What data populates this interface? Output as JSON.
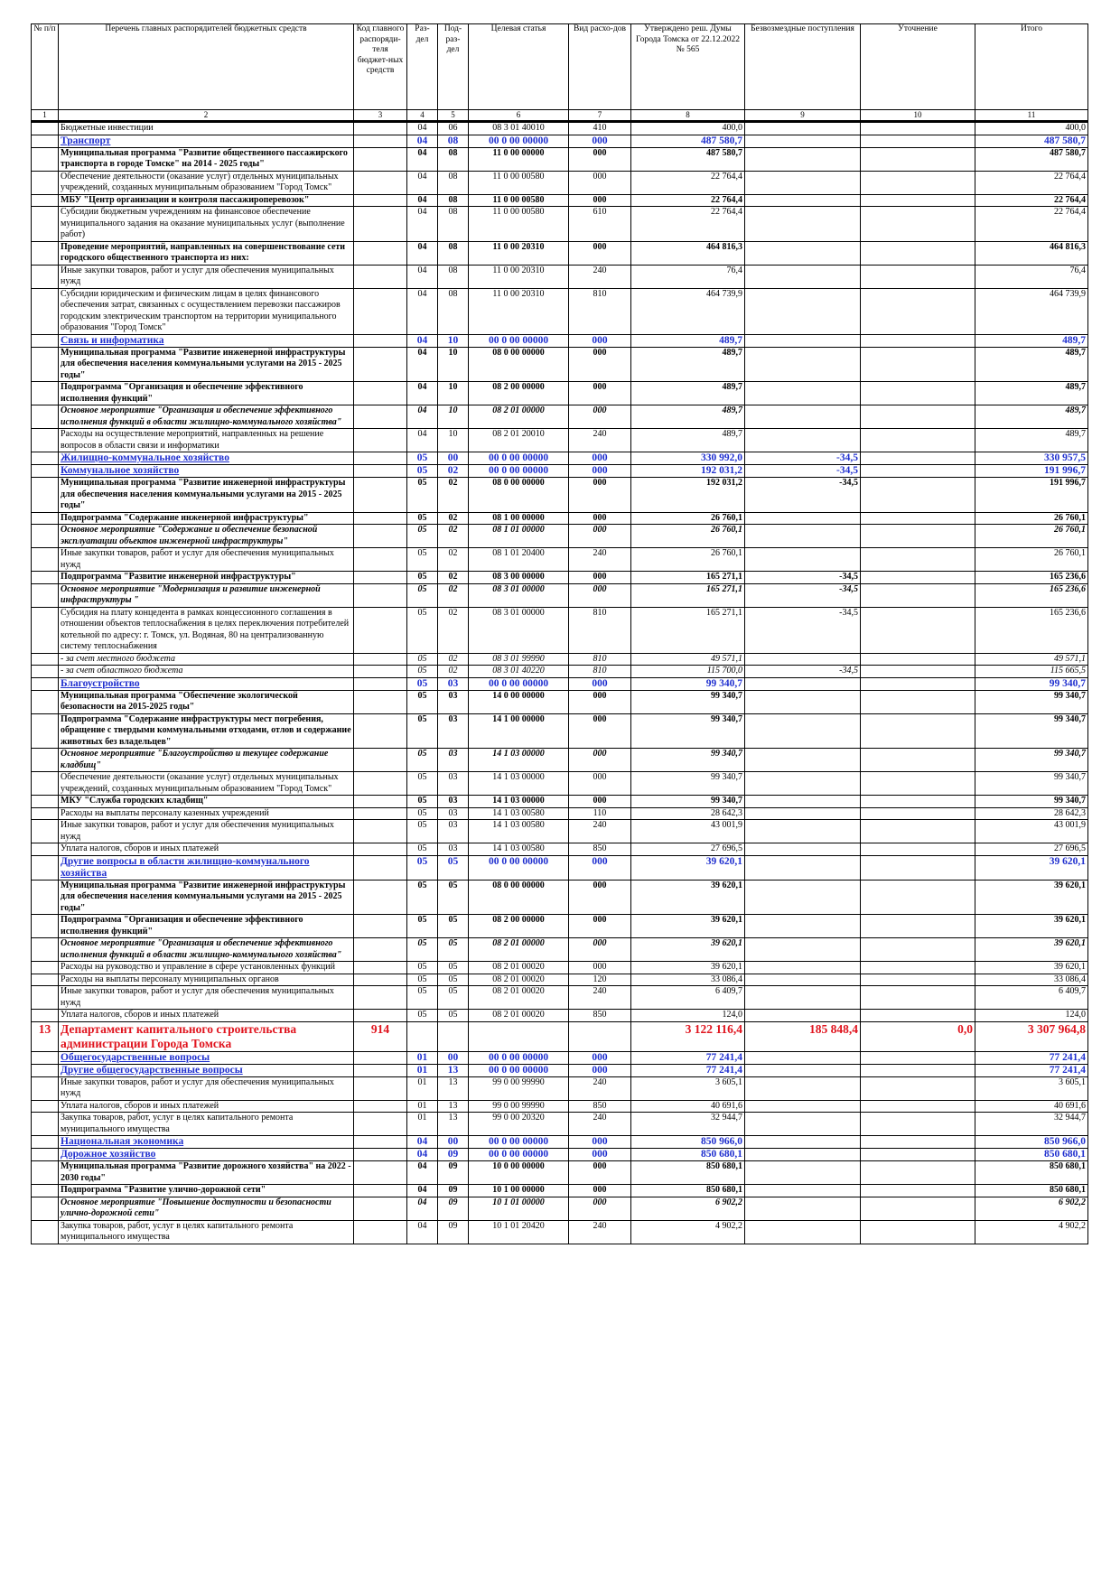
{
  "table": {
    "header": [
      "№ п/п",
      "Перечень главных распорядителей бюджетных средств",
      "Код главного распоряди-теля бюджет-ных средств",
      "Раз-дел",
      "Под-раз-дел",
      "Целевая статья",
      "Вид расхо-дов",
      "Утверждено реш. Думы Города Томска от 22.12.2022 № 565",
      "Безвозмездные поступления",
      "Уточнение",
      "Итого"
    ],
    "column_numbers": [
      "1",
      "2",
      "3",
      "4",
      "5",
      "6",
      "7",
      "8",
      "9",
      "10",
      "11"
    ],
    "rows": [
      {
        "style": "n",
        "cells": [
          null,
          "Бюджетные инвестиции",
          null,
          "04",
          "06",
          "08 3 01 40010",
          "410",
          "400,0",
          null,
          null,
          "400,0"
        ]
      },
      {
        "style": "blue",
        "cells": [
          null,
          "Транспорт",
          null,
          "04",
          "08",
          "00 0 00 00000",
          "000",
          "487 580,7",
          null,
          null,
          "487 580,7"
        ]
      },
      {
        "style": "b",
        "cells": [
          null,
          "Муниципальная программа \"Развитие общественного пассажирского транспорта в городе Томске\" на 2014 - 2025 годы\"",
          null,
          "04",
          "08",
          "11 0 00 00000",
          "000",
          "487 580,7",
          null,
          null,
          "487 580,7"
        ]
      },
      {
        "style": "n",
        "cells": [
          null,
          "Обеспечение деятельности (оказание услуг) отдельных муниципальных учреждений, созданных муниципальным образованием \"Город Томск\"",
          null,
          "04",
          "08",
          "11 0 00 00580",
          "000",
          "22 764,4",
          null,
          null,
          "22 764,4"
        ]
      },
      {
        "style": "b",
        "cells": [
          null,
          "МБУ \"Центр организации и контроля пассажироперевозок\"",
          null,
          "04",
          "08",
          "11 0 00 00580",
          "000",
          "22 764,4",
          null,
          null,
          "22 764,4"
        ]
      },
      {
        "style": "n",
        "cells": [
          null,
          "Субсидии бюджетным учреждениям на финансовое обеспечение муниципального задания на оказание муниципальных услуг (выполнение работ)",
          null,
          "04",
          "08",
          "11 0 00 00580",
          "610",
          "22 764,4",
          null,
          null,
          "22 764,4"
        ]
      },
      {
        "style": "b",
        "cells": [
          null,
          "Проведение мероприятий, направленных на совершенствование сети городского общественного транспорта из них:",
          null,
          "04",
          "08",
          "11 0 00 20310",
          "000",
          "464 816,3",
          null,
          null,
          "464 816,3"
        ]
      },
      {
        "style": "n",
        "cells": [
          null,
          "Иные закупки товаров, работ и услуг для обеспечения муниципальных нужд",
          null,
          "04",
          "08",
          "11 0 00 20310",
          "240",
          "76,4",
          null,
          null,
          "76,4"
        ]
      },
      {
        "style": "n",
        "cells": [
          null,
          "Субсидии юридическим и физическим лицам в целях финансового обеспечения затрат, связанных с осуществлением перевозки пассажиров городским электрическим транспортом на территории муниципального образования \"Город Томск\"",
          null,
          "04",
          "08",
          "11 0 00 20310",
          "810",
          "464 739,9",
          null,
          null,
          "464 739,9"
        ]
      },
      {
        "style": "blue",
        "cells": [
          null,
          "Связь и информатика",
          null,
          "04",
          "10",
          "00 0 00 00000",
          "000",
          "489,7",
          null,
          null,
          "489,7"
        ]
      },
      {
        "style": "b",
        "cells": [
          null,
          "Муниципальная программа \"Развитие инженерной инфраструктуры для обеспечения населения коммунальными услугами на 2015 - 2025 годы\"",
          null,
          "04",
          "10",
          "08 0 00 00000",
          "000",
          "489,7",
          null,
          null,
          "489,7"
        ]
      },
      {
        "style": "b",
        "cells": [
          null,
          "Подпрограмма \"Организация и обеспечение эффективного исполнения функций\"",
          null,
          "04",
          "10",
          "08 2 00 00000",
          "000",
          "489,7",
          null,
          null,
          "489,7"
        ]
      },
      {
        "style": "bi",
        "cells": [
          null,
          "Основное мероприятие \"Организация и обеспечение эффективного исполнения функций в области жилищно-коммунального хозяйства\"",
          null,
          "04",
          "10",
          "08 2 01 00000",
          "000",
          "489,7",
          null,
          null,
          "489,7"
        ]
      },
      {
        "style": "n",
        "cells": [
          null,
          "Расходы на осуществление мероприятий, направленных на решение вопросов в области связи и информатики",
          null,
          "04",
          "10",
          "08 2 01 20010",
          "240",
          "489,7",
          null,
          null,
          "489,7"
        ]
      },
      {
        "style": "blue",
        "cells": [
          null,
          "Жилищно-коммунальное хозяйство",
          null,
          "05",
          "00",
          "00 0 00 00000",
          "000",
          "330 992,0",
          "-34,5",
          null,
          "330 957,5"
        ]
      },
      {
        "style": "blue",
        "cells": [
          null,
          "Коммунальное хозяйство",
          null,
          "05",
          "02",
          "00 0 00 00000",
          "000",
          "192 031,2",
          "-34,5",
          null,
          "191 996,7"
        ]
      },
      {
        "style": "b",
        "cells": [
          null,
          "Муниципальная программа \"Развитие инженерной инфраструктуры для обеспечения населения коммунальными услугами на 2015 - 2025 годы\"",
          null,
          "05",
          "02",
          "08 0 00 00000",
          "000",
          "192 031,2",
          "-34,5",
          null,
          "191 996,7"
        ]
      },
      {
        "style": "b",
        "cells": [
          null,
          "Подпрограмма \"Содержание инженерной инфраструктуры\"",
          null,
          "05",
          "02",
          "08 1 00 00000",
          "000",
          "26 760,1",
          null,
          null,
          "26 760,1"
        ]
      },
      {
        "style": "bi",
        "cells": [
          null,
          "Основное мероприятие \"Содержание и обеспечение безопасной эксплуатации объектов инженерной инфраструктуры\"",
          null,
          "05",
          "02",
          "08 1 01 00000",
          "000",
          "26 760,1",
          null,
          null,
          "26 760,1"
        ]
      },
      {
        "style": "n",
        "cells": [
          null,
          "Иные закупки товаров, работ и услуг для обеспечения муниципальных нужд",
          null,
          "05",
          "02",
          "08 1 01 20400",
          "240",
          "26 760,1",
          null,
          null,
          "26 760,1"
        ]
      },
      {
        "style": "b",
        "cells": [
          null,
          "Подпрограмма \"Развитие инженерной инфраструктуры\"",
          null,
          "05",
          "02",
          "08 3 00 00000",
          "000",
          "165 271,1",
          "-34,5",
          null,
          "165 236,6"
        ]
      },
      {
        "style": "bi",
        "cells": [
          null,
          "Основное мероприятие \"Модернизация и развитие инженерной инфраструктуры \"",
          null,
          "05",
          "02",
          "08 3 01 00000",
          "000",
          "165 271,1",
          "-34,5",
          null,
          "165 236,6"
        ]
      },
      {
        "style": "n",
        "cells": [
          null,
          "Субсидия на плату концедента в рамках концессионного соглашения в отношении объектов теплоснабжения в целях переключения потребителей котельной по адресу: г. Томск, ул. Водяная, 80 на централизованную систему теплоснабжения",
          null,
          "05",
          "02",
          "08 3 01 00000",
          "810",
          "165 271,1",
          "-34,5",
          null,
          "165 236,6"
        ]
      },
      {
        "style": "ni",
        "cells": [
          null,
          "- за счет местного бюджета",
          null,
          "05",
          "02",
          "08 3 01 99990",
          "810",
          "49 571,1",
          null,
          null,
          "49 571,1"
        ]
      },
      {
        "style": "ni",
        "cells": [
          null,
          "- за счет областного бюджета",
          null,
          "05",
          "02",
          "08 3 01 40220",
          "810",
          "115 700,0",
          "-34,5",
          null,
          "115 665,5"
        ]
      },
      {
        "style": "blue",
        "cells": [
          null,
          "Благоустройство",
          null,
          "05",
          "03",
          "00 0 00 00000",
          "000",
          "99 340,7",
          null,
          null,
          "99 340,7"
        ]
      },
      {
        "style": "b",
        "cells": [
          null,
          "Муниципальная программа \"Обеспечение экологической безопасности на 2015-2025 годы\"",
          null,
          "05",
          "03",
          "14 0 00 00000",
          "000",
          "99 340,7",
          null,
          null,
          "99 340,7"
        ]
      },
      {
        "style": "b",
        "cells": [
          null,
          "Подпрограмма \"Содержание инфраструктуры мест погребения, обращение с твердыми коммунальными отходами, отлов и содержание животных без владельцев\"",
          null,
          "05",
          "03",
          "14 1 00 00000",
          "000",
          "99 340,7",
          null,
          null,
          "99 340,7"
        ]
      },
      {
        "style": "bi",
        "cells": [
          null,
          "Основное мероприятие \"Благоустройство и текущее содержание кладбищ\"",
          null,
          "05",
          "03",
          "14 1 03 00000",
          "000",
          "99 340,7",
          null,
          null,
          "99 340,7"
        ]
      },
      {
        "style": "n",
        "cells": [
          null,
          "Обеспечение деятельности (оказание услуг) отдельных муниципальных учреждений, созданных муниципальным образованием \"Город Томск\"",
          null,
          "05",
          "03",
          "14 1 03 00000",
          "000",
          "99 340,7",
          null,
          null,
          "99 340,7"
        ]
      },
      {
        "style": "b",
        "cells": [
          null,
          "МКУ \"Служба городских кладбищ\"",
          null,
          "05",
          "03",
          "14 1 03 00000",
          "000",
          "99 340,7",
          null,
          null,
          "99 340,7"
        ]
      },
      {
        "style": "n",
        "cells": [
          null,
          "Расходы на выплаты персоналу казенных учреждений",
          null,
          "05",
          "03",
          "14 1 03 00580",
          "110",
          "28 642,3",
          null,
          null,
          "28 642,3"
        ]
      },
      {
        "style": "n",
        "cells": [
          null,
          "Иные закупки товаров, работ и услуг для обеспечения муниципальных нужд",
          null,
          "05",
          "03",
          "14 1 03 00580",
          "240",
          "43 001,9",
          null,
          null,
          "43 001,9"
        ]
      },
      {
        "style": "n",
        "cells": [
          null,
          "Уплата налогов, сборов и иных платежей",
          null,
          "05",
          "03",
          "14 1 03 00580",
          "850",
          "27 696,5",
          null,
          null,
          "27 696,5"
        ]
      },
      {
        "style": "blue",
        "cells": [
          null,
          "Другие вопросы в области жилищно-коммунального хозяйства",
          null,
          "05",
          "05",
          "00 0 00 00000",
          "000",
          "39 620,1",
          null,
          null,
          "39 620,1"
        ]
      },
      {
        "style": "b",
        "cells": [
          null,
          "Муниципальная программа \"Развитие инженерной инфраструктуры для обеспечения населения коммунальными услугами на 2015 - 2025 годы\"",
          null,
          "05",
          "05",
          "08 0 00 00000",
          "000",
          "39 620,1",
          null,
          null,
          "39 620,1"
        ]
      },
      {
        "style": "b",
        "cells": [
          null,
          "Подпрограмма \"Организация и обеспечение эффективного исполнения функций\"",
          null,
          "05",
          "05",
          "08 2 00 00000",
          "000",
          "39 620,1",
          null,
          null,
          "39 620,1"
        ]
      },
      {
        "style": "bi",
        "cells": [
          null,
          "Основное мероприятие \"Организация и обеспечение эффективного исполнения функций в области жилищно-коммунального хозяйства\"",
          null,
          "05",
          "05",
          "08 2 01 00000",
          "000",
          "39 620,1",
          null,
          null,
          "39 620,1"
        ]
      },
      {
        "style": "n",
        "cells": [
          null,
          "Расходы на руководство и управление в сфере установленных функций",
          null,
          "05",
          "05",
          "08 2 01 00020",
          "000",
          "39 620,1",
          null,
          null,
          "39 620,1"
        ]
      },
      {
        "style": "n",
        "cells": [
          null,
          "Расходы на выплаты персоналу муниципальных органов",
          null,
          "05",
          "05",
          "08 2 01 00020",
          "120",
          "33 086,4",
          null,
          null,
          "33 086,4"
        ]
      },
      {
        "style": "n",
        "cells": [
          null,
          "Иные закупки товаров, работ и услуг для обеспечения муниципальных нужд",
          null,
          "05",
          "05",
          "08 2 01 00020",
          "240",
          "6 409,7",
          null,
          null,
          "6 409,7"
        ]
      },
      {
        "style": "n",
        "cells": [
          null,
          "Уплата налогов, сборов и иных платежей",
          null,
          "05",
          "05",
          "08 2 01 00020",
          "850",
          "124,0",
          null,
          null,
          "124,0"
        ]
      },
      {
        "style": "red",
        "cells": [
          "13",
          "Департамент капитального строительства администрации Города Томска",
          "914",
          null,
          null,
          null,
          null,
          "3 122 116,4",
          "185 848,4",
          "0,0",
          "3 307 964,8"
        ]
      },
      {
        "style": "blue",
        "cells": [
          null,
          "Общегосударственные вопросы",
          null,
          "01",
          "00",
          "00 0 00 00000",
          "000",
          "77 241,4",
          null,
          null,
          "77 241,4"
        ]
      },
      {
        "style": "blue",
        "cells": [
          null,
          "Другие общегосударственные вопросы",
          null,
          "01",
          "13",
          "00 0 00 00000",
          "000",
          "77 241,4",
          null,
          null,
          "77 241,4"
        ]
      },
      {
        "style": "n",
        "cells": [
          null,
          "Иные закупки товаров, работ и услуг для обеспечения муниципальных нужд",
          null,
          "01",
          "13",
          "99 0 00 99990",
          "240",
          "3 605,1",
          null,
          null,
          "3 605,1"
        ]
      },
      {
        "style": "n",
        "cells": [
          null,
          "Уплата налогов, сборов и иных платежей",
          null,
          "01",
          "13",
          "99 0 00 99990",
          "850",
          "40 691,6",
          null,
          null,
          "40 691,6"
        ]
      },
      {
        "style": "n",
        "cells": [
          null,
          "Закупка товаров, работ, услуг в целях капитального ремонта муниципального имущества",
          null,
          "01",
          "13",
          "99 0 00 20320",
          "240",
          "32 944,7",
          null,
          null,
          "32 944,7"
        ]
      },
      {
        "style": "blue",
        "cells": [
          null,
          "Национальная экономика",
          null,
          "04",
          "00",
          "00 0 00 00000",
          "000",
          "850 966,0",
          null,
          null,
          "850 966,0"
        ]
      },
      {
        "style": "blue",
        "cells": [
          null,
          "Дорожное хозяйство",
          null,
          "04",
          "09",
          "00 0 00 00000",
          "000",
          "850 680,1",
          null,
          null,
          "850 680,1"
        ]
      },
      {
        "style": "b",
        "cells": [
          null,
          "Муниципальная программа \"Развитие дорожного хозяйства\" на 2022 - 2030 годы\"",
          null,
          "04",
          "09",
          "10 0 00 00000",
          "000",
          "850 680,1",
          null,
          null,
          "850 680,1"
        ]
      },
      {
        "style": "b",
        "cells": [
          null,
          "Подпрограмма \"Развитие улично-дорожной сети\"",
          null,
          "04",
          "09",
          "10 1 00 00000",
          "000",
          "850 680,1",
          null,
          null,
          "850 680,1"
        ]
      },
      {
        "style": "bi",
        "cells": [
          null,
          "Основное мероприятие \"Повышение доступности и безопасности улично-дорожной сети\"",
          null,
          "04",
          "09",
          "10 1 01 00000",
          "000",
          "6 902,2",
          null,
          null,
          "6 902,2"
        ]
      },
      {
        "style": "n",
        "cells": [
          null,
          "Закупка товаров, работ, услуг в целях капитального ремонта муниципального имущества",
          null,
          "04",
          "09",
          "10 1 01 20420",
          "240",
          "4 902,2",
          null,
          null,
          "4 902,2"
        ]
      }
    ]
  }
}
